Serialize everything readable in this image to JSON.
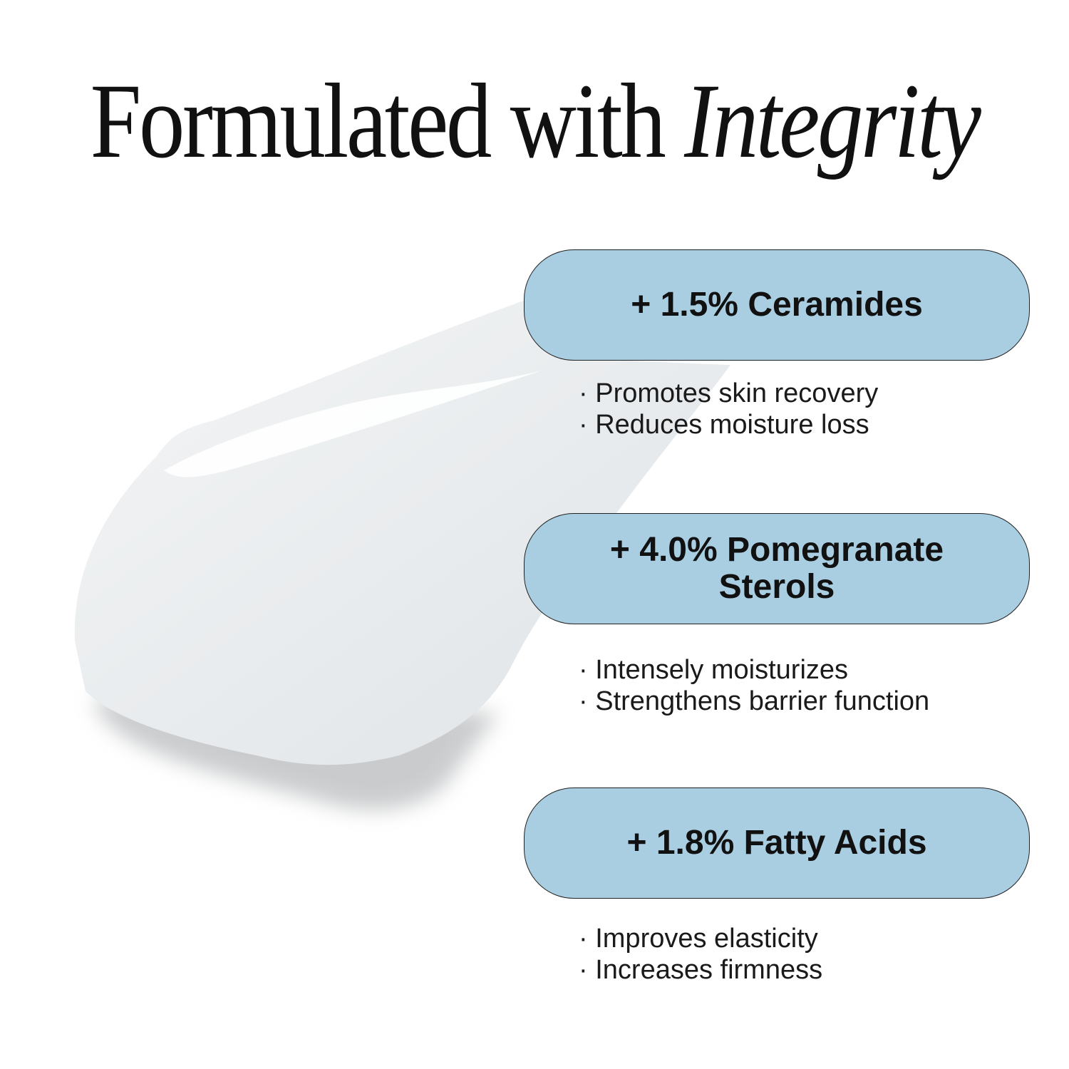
{
  "title": {
    "regular": "Formulated with",
    "italic": "Integrity"
  },
  "colors": {
    "pill_fill": "#a9cde1",
    "pill_border": "#222222",
    "text": "#111111"
  },
  "ingredients": [
    {
      "label": "+ 1.5% Ceramides",
      "benefits": [
        "Promotes skin recovery",
        "Reduces moisture loss"
      ]
    },
    {
      "label": "+ 4.0% Pomegranate Sterols",
      "benefits": [
        "Intensely moisturizes",
        "Strengthens barrier function"
      ]
    },
    {
      "label": "+ 1.8% Fatty Acids",
      "benefits": [
        "Improves elasticity",
        "Increases firmness"
      ]
    }
  ]
}
